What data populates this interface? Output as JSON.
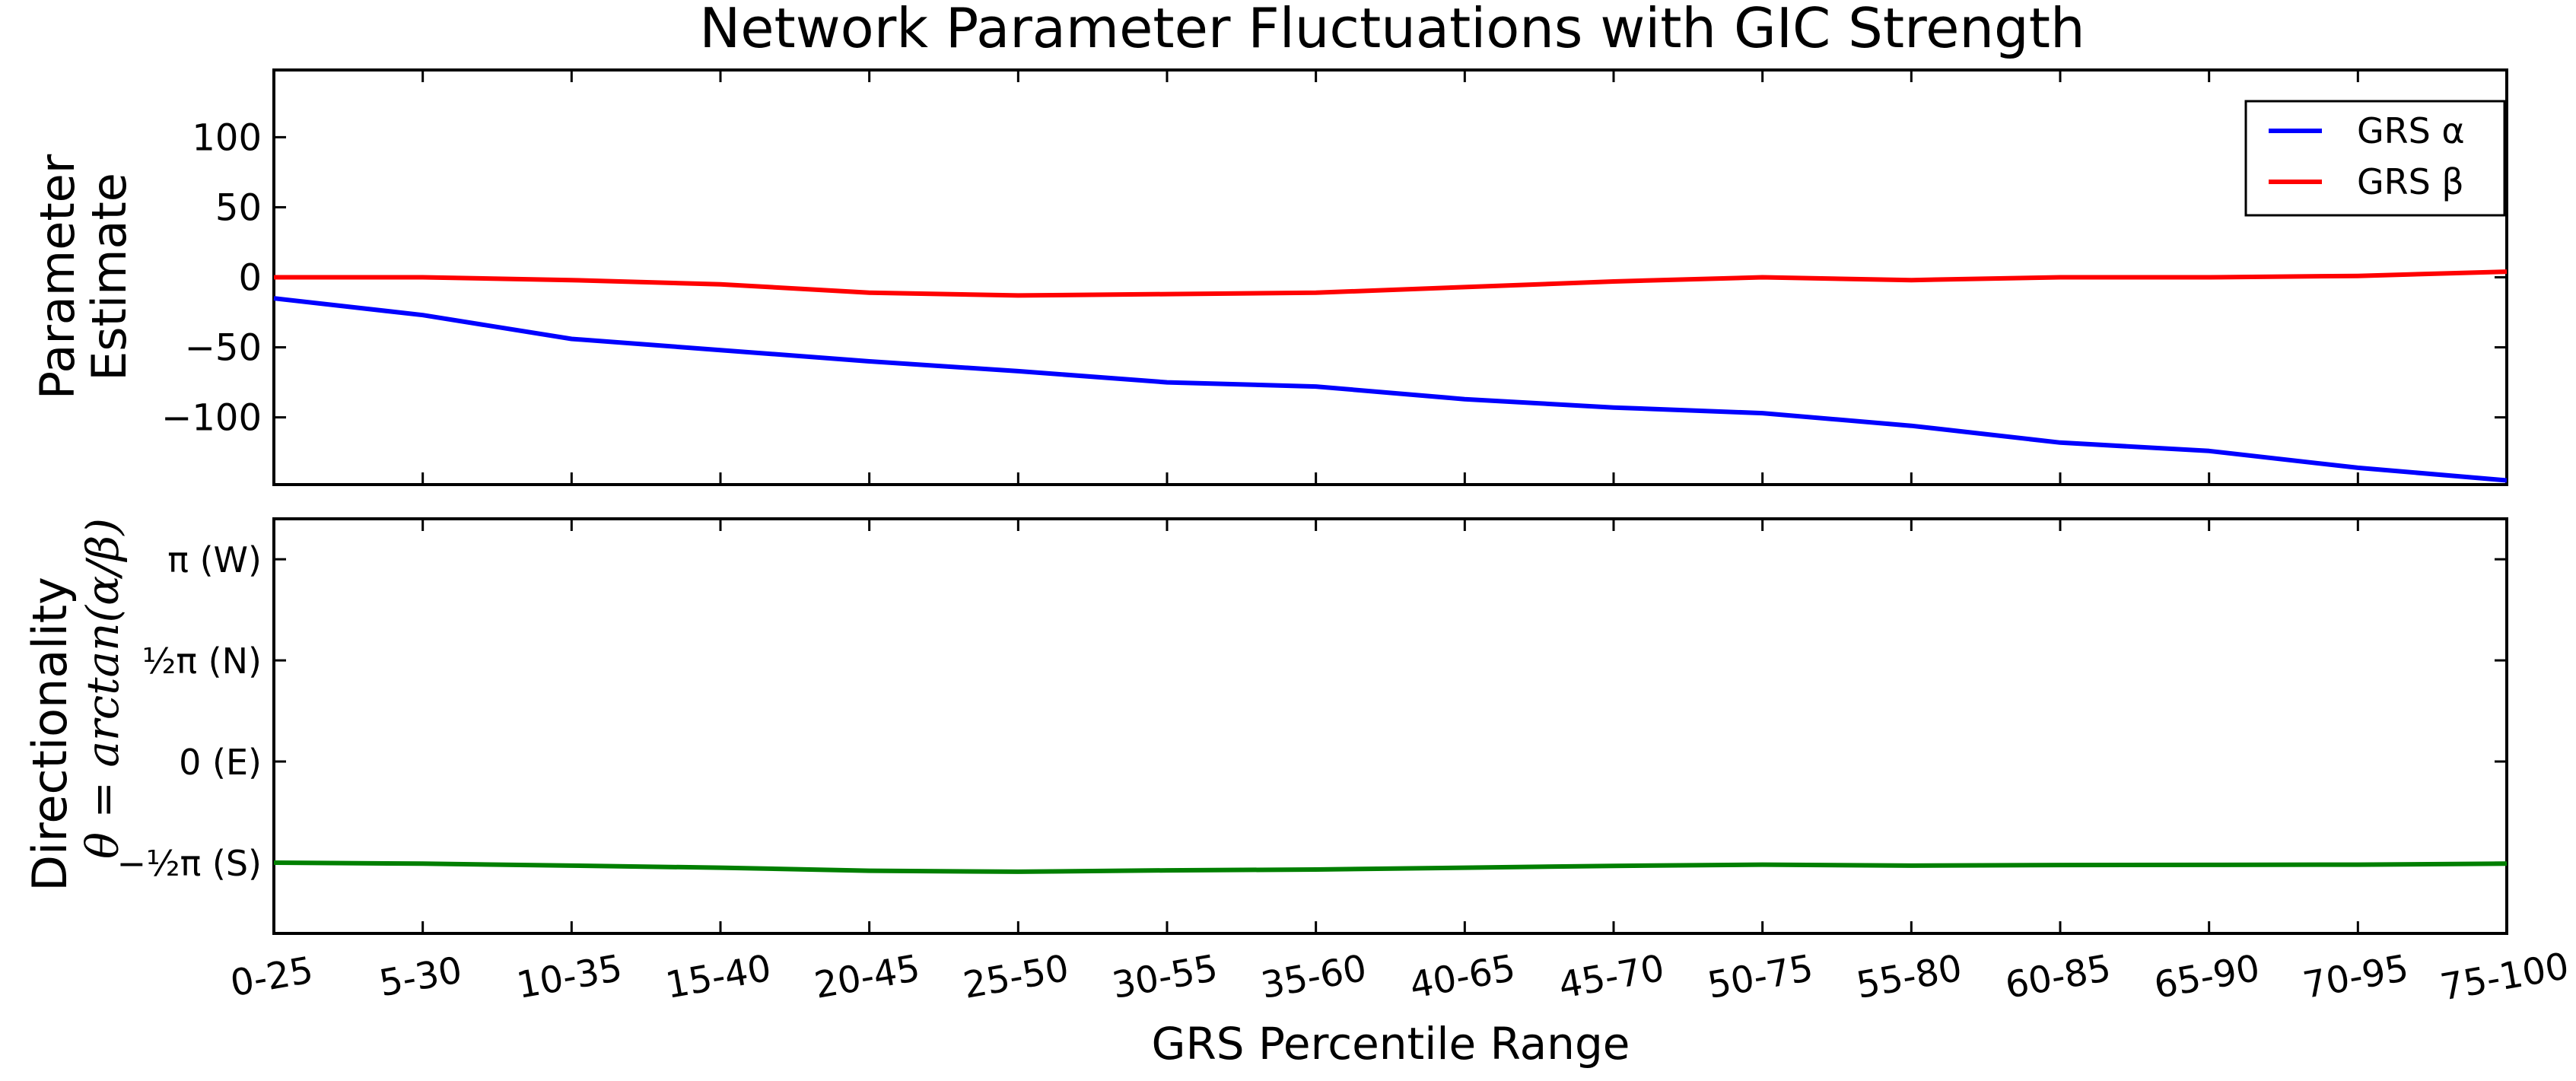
{
  "chart_data": [
    {
      "type": "line",
      "title": "Network Parameter Fluctuations with GIC Strength",
      "ylabel_line1": "Parameter",
      "ylabel_line2": "Estimate",
      "categories": [
        "0-25",
        "5-30",
        "10-35",
        "15-40",
        "20-45",
        "25-50",
        "30-55",
        "35-60",
        "40-65",
        "45-70",
        "50-75",
        "55-80",
        "60-85",
        "65-90",
        "70-95",
        "75-100"
      ],
      "ylim": [
        -148,
        148
      ],
      "yticks": [
        -100,
        -50,
        0,
        50,
        100
      ],
      "ytick_labels": [
        "−100",
        "−50",
        "0",
        "50",
        "100"
      ],
      "legend_position": "upper-right",
      "series": [
        {
          "name": "GRS α",
          "color": "#0000ff",
          "values": [
            -15,
            -27,
            -44,
            -52,
            -60,
            -67,
            -75,
            -78,
            -87,
            -93,
            -97,
            -106,
            -118,
            -124,
            -136,
            -145
          ]
        },
        {
          "name": "GRS β",
          "color": "#ff0000",
          "values": [
            0,
            0,
            -2,
            -5,
            -11,
            -13,
            -12,
            -11,
            -7,
            -3,
            0,
            -2,
            0,
            0,
            1,
            4
          ]
        }
      ]
    },
    {
      "type": "line",
      "ylabel_line1": "Directionality",
      "ylabel_line2": "θ = arctan(α/β)",
      "categories": [
        "0-25",
        "5-30",
        "10-35",
        "15-40",
        "20-45",
        "25-50",
        "30-55",
        "35-60",
        "40-65",
        "45-70",
        "50-75",
        "55-80",
        "60-85",
        "65-90",
        "70-95",
        "75-100"
      ],
      "xlabel": "GRS Percentile Range",
      "ylim_pi": [
        -0.85,
        1.2
      ],
      "yticks_pi": [
        -0.5,
        0,
        0.5,
        1
      ],
      "ytick_labels": [
        "−½π (S)",
        "0 (E)",
        "½π (N)",
        "π (W)"
      ],
      "series": [
        {
          "color": "#007f00",
          "values_pi": [
            -0.5,
            -0.505,
            -0.515,
            -0.525,
            -0.54,
            -0.545,
            -0.538,
            -0.534,
            -0.525,
            -0.516,
            -0.51,
            -0.515,
            -0.512,
            -0.511,
            -0.51,
            -0.505
          ]
        }
      ]
    }
  ]
}
